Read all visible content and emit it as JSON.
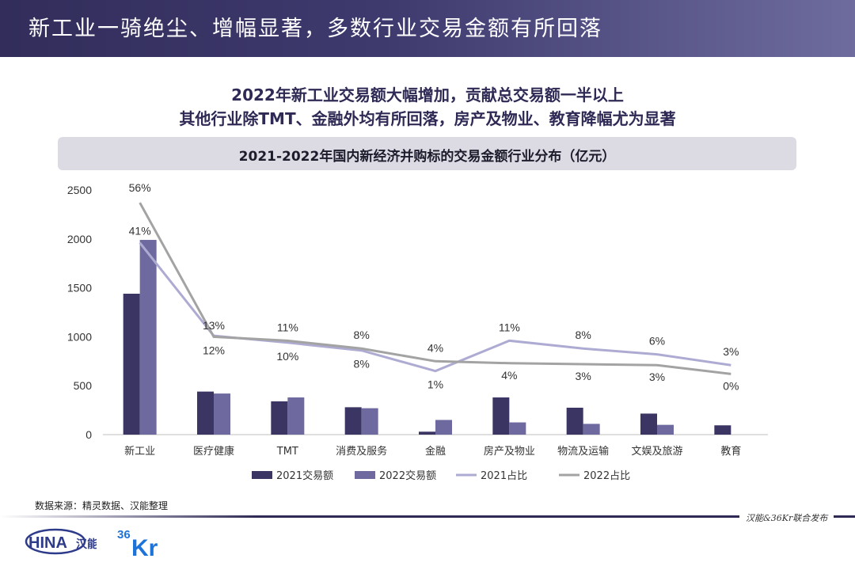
{
  "header": {
    "title": "新工业一骑绝尘、增幅显著，多数行业交易金额有所回落"
  },
  "subtitles": [
    "2022年新工业交易额大幅增加，贡献总交易额一半以上",
    "其他行业除TMT、金融外均有所回落，房产及物业、教育降幅尤为显著"
  ],
  "chart_data": {
    "type": "bar",
    "title": "2021-2022年国内新经济并购标的交易金额行业分布（亿元）",
    "categories": [
      "新工业",
      "医疗健康",
      "TMT",
      "消费及服务",
      "金融",
      "房产及物业",
      "物流及运输",
      "文娱及旅游",
      "教育"
    ],
    "series": [
      {
        "name": "2021交易额",
        "type": "bar",
        "color": "#3a3563",
        "values": [
          1440,
          440,
          340,
          280,
          30,
          380,
          275,
          215,
          95
        ]
      },
      {
        "name": "2022交易额",
        "type": "bar",
        "color": "#6e6aa0",
        "values": [
          1990,
          420,
          380,
          270,
          150,
          125,
          110,
          100,
          0
        ]
      },
      {
        "name": "2021占比",
        "type": "line",
        "color": "#aeabd3",
        "values": [
          1960,
          1010,
          940,
          860,
          650,
          960,
          880,
          820,
          710
        ],
        "labels": [
          "41%",
          "13%",
          "10%",
          "8%",
          "1%",
          "11%",
          "8%",
          "6%",
          "3%"
        ]
      },
      {
        "name": "2022占比",
        "type": "line",
        "color": "#a3a3a3",
        "values": [
          2370,
          1000,
          960,
          880,
          750,
          730,
          720,
          710,
          620
        ],
        "labels": [
          "56%",
          "12%",
          "11%",
          "8%",
          "4%",
          "4%",
          "3%",
          "3%",
          "0%"
        ]
      }
    ],
    "yticks": [
      0,
      500,
      1000,
      1500,
      2000,
      2500
    ],
    "ylim": [
      0,
      2500
    ],
    "legend_position": "bottom",
    "grid": false
  },
  "source": "数据来源：精灵数据、汉能整理",
  "footer": {
    "publisher": "汉能&36Kr联合发布"
  },
  "logos": {
    "china": "CHINA汉能",
    "kr": "36Kr"
  }
}
